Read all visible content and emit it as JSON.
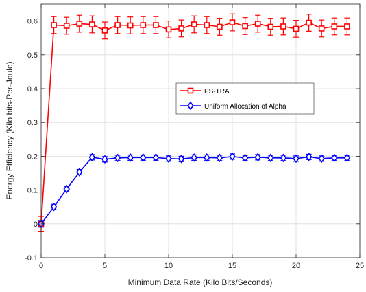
{
  "chart_data": {
    "type": "line",
    "title": "",
    "xlabel": "Minimum Data Rate (Kilo Bits/Seconds)",
    "ylabel": "Energy Efficiency (Kilo bits-Per-Joule)",
    "xlim": [
      0,
      25
    ],
    "ylim": [
      -0.1,
      0.65
    ],
    "xticks": [
      0,
      5,
      10,
      15,
      20,
      25
    ],
    "yticks": [
      -0.1,
      0,
      0.1,
      0.2,
      0.3,
      0.4,
      0.5,
      0.6
    ],
    "xtick_labels": [
      "0",
      "5",
      "10",
      "15",
      "20",
      "25"
    ],
    "ytick_labels": [
      "-0.1",
      "0",
      "0.1",
      "0.2",
      "0.3",
      "0.4",
      "0.5",
      "0.6"
    ],
    "grid": true,
    "legend_position": "center-right",
    "x": [
      0,
      1,
      2,
      3,
      4,
      5,
      6,
      7,
      8,
      9,
      10,
      11,
      12,
      13,
      14,
      15,
      16,
      17,
      18,
      19,
      20,
      21,
      22,
      23,
      24
    ],
    "series": [
      {
        "name": "PS-TRA",
        "color": "#ff0000",
        "marker": "square",
        "values": [
          0.0,
          0.588,
          0.586,
          0.592,
          0.59,
          0.572,
          0.588,
          0.587,
          0.588,
          0.588,
          0.575,
          0.578,
          0.59,
          0.588,
          0.583,
          0.596,
          0.585,
          0.592,
          0.583,
          0.584,
          0.577,
          0.595,
          0.578,
          0.584,
          0.584
        ],
        "error": [
          0.022,
          0.025,
          0.025,
          0.025,
          0.025,
          0.025,
          0.025,
          0.025,
          0.025,
          0.025,
          0.025,
          0.025,
          0.025,
          0.025,
          0.025,
          0.025,
          0.025,
          0.025,
          0.025,
          0.025,
          0.025,
          0.025,
          0.025,
          0.025,
          0.025
        ]
      },
      {
        "name": "Uniform Allocation of Alpha",
        "color": "#0000ff",
        "marker": "diamond",
        "values": [
          0.0,
          0.05,
          0.103,
          0.153,
          0.197,
          0.191,
          0.195,
          0.196,
          0.196,
          0.196,
          0.193,
          0.192,
          0.196,
          0.196,
          0.195,
          0.199,
          0.195,
          0.197,
          0.195,
          0.195,
          0.193,
          0.198,
          0.193,
          0.195,
          0.195
        ],
        "error": [
          0.01,
          0.008,
          0.008,
          0.008,
          0.008,
          0.008,
          0.008,
          0.008,
          0.008,
          0.008,
          0.008,
          0.008,
          0.008,
          0.008,
          0.008,
          0.008,
          0.008,
          0.008,
          0.008,
          0.008,
          0.008,
          0.008,
          0.008,
          0.008,
          0.008
        ]
      }
    ]
  }
}
